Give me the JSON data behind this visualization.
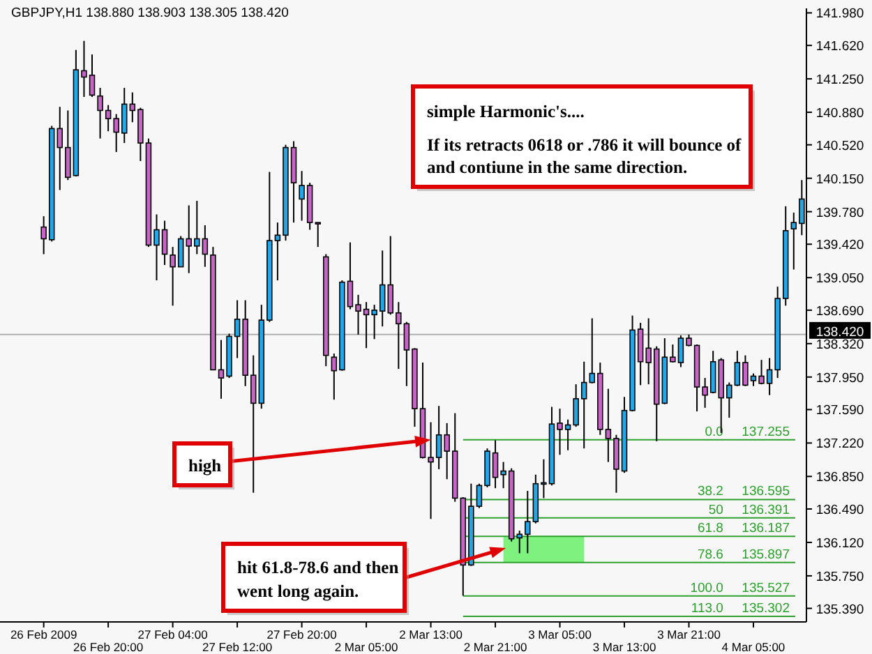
{
  "chart_data": {
    "type": "candlestick",
    "title": "GBPJPY,H1  138.880 138.903 138.305 138.420",
    "categories": [
      "26 Feb 2009",
      null,
      null,
      null,
      null,
      null,
      null,
      null,
      "26 Feb 20:00",
      null,
      null,
      null,
      null,
      null,
      null,
      null,
      "27 Feb 04:00",
      null,
      null,
      null,
      null,
      null,
      null,
      null,
      "27 Feb 12:00",
      null,
      null,
      null,
      null,
      null,
      null,
      null,
      "27 Feb 20:00",
      null,
      null,
      null,
      null,
      null,
      null,
      null,
      "2 Mar 05:00",
      null,
      null,
      null,
      null,
      null,
      null,
      null,
      "2 Mar 13:00",
      null,
      null,
      null,
      null,
      null,
      null,
      null,
      "2 Mar 21:00",
      null,
      null,
      null,
      null,
      null,
      null,
      null,
      "3 Mar 05:00",
      null,
      null,
      null,
      null,
      null,
      null,
      null,
      "3 Mar 13:00",
      null,
      null,
      null,
      null,
      null,
      null,
      null,
      "3 Mar 21:00",
      null,
      null,
      null,
      null,
      null,
      null,
      null,
      "4 Mar 05:00",
      null,
      null,
      null,
      null,
      null,
      null
    ],
    "ohlc": [
      [
        139.61,
        139.73,
        139.31,
        139.48
      ],
      [
        139.47,
        140.73,
        139.45,
        140.7
      ],
      [
        140.7,
        140.94,
        140.02,
        140.49
      ],
      [
        140.49,
        140.9,
        140.13,
        140.16
      ],
      [
        140.18,
        141.57,
        140.17,
        141.35
      ],
      [
        141.34,
        141.67,
        141.05,
        141.27
      ],
      [
        141.29,
        141.52,
        141.05,
        141.07
      ],
      [
        141.06,
        141.15,
        140.59,
        140.9
      ],
      [
        140.9,
        140.96,
        140.67,
        140.81
      ],
      [
        140.81,
        140.86,
        140.44,
        140.66
      ],
      [
        140.65,
        141.15,
        140.54,
        140.97
      ],
      [
        140.97,
        141.1,
        140.77,
        140.9
      ],
      [
        140.91,
        140.93,
        140.34,
        140.54
      ],
      [
        140.54,
        140.59,
        139.39,
        139.41
      ],
      [
        139.41,
        139.75,
        139.02,
        139.58
      ],
      [
        139.58,
        139.68,
        139.19,
        139.31
      ],
      [
        139.3,
        139.39,
        138.74,
        139.17
      ],
      [
        139.17,
        139.51,
        139.17,
        139.48
      ],
      [
        139.48,
        139.85,
        139.1,
        139.4
      ],
      [
        139.4,
        139.9,
        139.31,
        139.48
      ],
      [
        139.48,
        139.63,
        139.17,
        139.31
      ],
      [
        139.3,
        139.39,
        138.03,
        138.03
      ],
      [
        138.03,
        138.36,
        137.71,
        137.94
      ],
      [
        137.96,
        138.43,
        137.94,
        138.4
      ],
      [
        138.4,
        138.8,
        138.16,
        138.59
      ],
      [
        138.59,
        138.8,
        137.85,
        137.97
      ],
      [
        137.97,
        138.19,
        136.67,
        137.66
      ],
      [
        137.66,
        138.75,
        137.6,
        138.58
      ],
      [
        138.58,
        140.22,
        138.56,
        139.46
      ],
      [
        139.46,
        139.66,
        139.02,
        139.52
      ],
      [
        139.52,
        140.52,
        139.46,
        140.49
      ],
      [
        140.49,
        140.56,
        139.66,
        140.1
      ],
      [
        139.92,
        140.23,
        139.68,
        140.07
      ],
      [
        140.07,
        140.1,
        139.58,
        139.66
      ],
      [
        139.66,
        139.66,
        139.39,
        139.66
      ],
      [
        139.28,
        139.31,
        138.07,
        138.19
      ],
      [
        138.17,
        138.21,
        137.7,
        138.02
      ],
      [
        138.03,
        139.02,
        138.02,
        139.0
      ],
      [
        139.01,
        139.44,
        138.7,
        138.73
      ],
      [
        138.75,
        138.86,
        138.42,
        138.68
      ],
      [
        138.7,
        138.78,
        138.27,
        138.64
      ],
      [
        138.64,
        138.75,
        138.37,
        138.69
      ],
      [
        138.68,
        139.35,
        138.51,
        138.97
      ],
      [
        138.97,
        139.51,
        138.64,
        138.66
      ],
      [
        138.66,
        138.78,
        138.04,
        138.54
      ],
      [
        138.54,
        138.56,
        137.85,
        138.25
      ],
      [
        138.26,
        138.27,
        137.4,
        137.6
      ],
      [
        137.6,
        138.11,
        137.05,
        137.06
      ],
      [
        137.06,
        137.45,
        136.38,
        137.01
      ],
      [
        137.06,
        137.63,
        136.93,
        137.31
      ],
      [
        137.31,
        137.44,
        136.82,
        137.13
      ],
      [
        137.13,
        137.55,
        136.57,
        136.61
      ],
      [
        136.61,
        136.62,
        135.53,
        135.87
      ],
      [
        135.87,
        136.77,
        135.86,
        136.52
      ],
      [
        136.52,
        136.77,
        136.5,
        136.75
      ],
      [
        136.75,
        137.16,
        136.73,
        137.13
      ],
      [
        137.11,
        137.25,
        136.72,
        136.84
      ],
      [
        136.87,
        137.01,
        136.72,
        136.91
      ],
      [
        136.91,
        136.94,
        136.13,
        136.16
      ],
      [
        136.17,
        136.25,
        136.0,
        136.21
      ],
      [
        136.21,
        136.69,
        136.0,
        136.35
      ],
      [
        136.35,
        136.87,
        136.33,
        136.77
      ],
      [
        136.77,
        137.04,
        136.61,
        136.78
      ],
      [
        136.77,
        137.62,
        136.75,
        137.43
      ],
      [
        137.44,
        137.6,
        137.09,
        137.37
      ],
      [
        137.37,
        137.48,
        137.14,
        137.42
      ],
      [
        137.42,
        137.87,
        137.4,
        137.71
      ],
      [
        137.71,
        138.12,
        137.16,
        137.89
      ],
      [
        137.89,
        138.6,
        137.88,
        137.99
      ],
      [
        137.99,
        138.11,
        137.31,
        137.37
      ],
      [
        137.37,
        137.82,
        137.01,
        137.27
      ],
      [
        137.27,
        137.31,
        136.67,
        136.93
      ],
      [
        136.91,
        137.73,
        136.89,
        137.58
      ],
      [
        137.58,
        138.63,
        137.57,
        138.47
      ],
      [
        138.48,
        138.55,
        137.86,
        138.12
      ],
      [
        138.27,
        138.6,
        137.87,
        138.11
      ],
      [
        138.26,
        138.29,
        137.24,
        137.65
      ],
      [
        137.66,
        138.38,
        137.65,
        138.17
      ],
      [
        138.17,
        138.31,
        138.11,
        138.12
      ],
      [
        138.11,
        138.41,
        138.06,
        138.38
      ],
      [
        138.38,
        138.42,
        138.29,
        138.3
      ],
      [
        138.3,
        138.31,
        137.57,
        137.84
      ],
      [
        137.84,
        137.94,
        137.61,
        137.75
      ],
      [
        137.78,
        138.24,
        137.77,
        138.12
      ],
      [
        138.14,
        138.16,
        137.33,
        137.72
      ],
      [
        137.72,
        137.89,
        137.5,
        137.86
      ],
      [
        137.86,
        138.24,
        137.85,
        138.11
      ],
      [
        138.11,
        138.19,
        137.85,
        137.86
      ],
      [
        137.91,
        137.99,
        137.85,
        137.96
      ],
      [
        137.96,
        138.14,
        137.87,
        137.88
      ],
      [
        137.88,
        138.16,
        137.75,
        138.03
      ],
      [
        138.03,
        138.95,
        137.94,
        138.82
      ],
      [
        138.82,
        139.84,
        138.74,
        139.57
      ],
      [
        139.59,
        139.77,
        139.14,
        139.66
      ],
      [
        139.65,
        140.13,
        139.52,
        139.92
      ]
    ],
    "colors": [
      "#c864c8",
      "#22a8e8",
      "#c864c8",
      "#c864c8",
      "#22a8e8",
      "#c864c8",
      "#c864c8",
      "#c864c8",
      "#c864c8",
      "#c864c8",
      "#22a8e8",
      "#c864c8",
      "#c864c8",
      "#c864c8",
      "#22a8e8",
      "#c864c8",
      "#c864c8",
      "#22a8e8",
      "#c864c8",
      "#22a8e8",
      "#c864c8",
      "#c864c8",
      "#c864c8",
      "#22a8e8",
      "#22a8e8",
      "#c864c8",
      "#c864c8",
      "#22a8e8",
      "#22a8e8",
      "#22a8e8",
      "#22a8e8",
      "#c864c8",
      "#22a8e8",
      "#c864c8",
      "#c864c8",
      "#c864c8",
      "#c864c8",
      "#22a8e8",
      "#c864c8",
      "#c864c8",
      "#c864c8",
      "#22a8e8",
      "#22a8e8",
      "#c864c8",
      "#c864c8",
      "#c864c8",
      "#c864c8",
      "#c864c8",
      "#c864c8",
      "#22a8e8",
      "#c864c8",
      "#c864c8",
      "#c864c8",
      "#22a8e8",
      "#22a8e8",
      "#22a8e8",
      "#c864c8",
      "#22a8e8",
      "#c864c8",
      "#22a8e8",
      "#22a8e8",
      "#22a8e8",
      "#22a8e8",
      "#22a8e8",
      "#c864c8",
      "#22a8e8",
      "#22a8e8",
      "#22a8e8",
      "#22a8e8",
      "#c864c8",
      "#c864c8",
      "#c864c8",
      "#22a8e8",
      "#22a8e8",
      "#c864c8",
      "#c864c8",
      "#c864c8",
      "#22a8e8",
      "#c864c8",
      "#22a8e8",
      "#c864c8",
      "#c864c8",
      "#c864c8",
      "#22a8e8",
      "#c864c8",
      "#22a8e8",
      "#22a8e8",
      "#c864c8",
      "#22a8e8",
      "#c864c8",
      "#22a8e8",
      "#22a8e8",
      "#22a8e8",
      "#22a8e8",
      "#22a8e8"
    ],
    "ylim": [
      135.24,
      142.03
    ],
    "yticks": [
      {
        "value": 141.98,
        "label": "141.980"
      },
      {
        "value": 141.62,
        "label": "141.620"
      },
      {
        "value": 141.25,
        "label": "141.250"
      },
      {
        "value": 140.88,
        "label": "140.880"
      },
      {
        "value": 140.52,
        "label": "140.520"
      },
      {
        "value": 140.15,
        "label": "140.150"
      },
      {
        "value": 139.78,
        "label": "139.780"
      },
      {
        "value": 139.42,
        "label": "139.420"
      },
      {
        "value": 139.05,
        "label": "139.050"
      },
      {
        "value": 138.69,
        "label": "138.690"
      },
      {
        "value": 138.32,
        "label": "138.320"
      },
      {
        "value": 137.95,
        "label": "137.950"
      },
      {
        "value": 137.59,
        "label": "137.590"
      },
      {
        "value": 137.22,
        "label": "137.220"
      },
      {
        "value": 136.85,
        "label": "136.850"
      },
      {
        "value": 136.49,
        "label": "136.490"
      },
      {
        "value": 136.12,
        "label": "136.120"
      },
      {
        "value": 135.75,
        "label": "135.750"
      },
      {
        "value": 135.39,
        "label": "135.390"
      }
    ],
    "ref_lines": [
      {
        "axis": "y",
        "value": 138.42,
        "label": "138.420",
        "color": "#b0b0b0"
      },
      {
        "axis": "y",
        "value": 137.255,
        "label": "0.0     137.255",
        "color": "#2ca02c"
      },
      {
        "axis": "y",
        "value": 136.595,
        "label": "38.2     136.595",
        "color": "#2ca02c"
      },
      {
        "axis": "y",
        "value": 136.391,
        "label": "50     136.391",
        "color": "#2ca02c"
      },
      {
        "axis": "y",
        "value": 136.187,
        "label": "61.8     136.187",
        "color": "#2ca02c"
      },
      {
        "axis": "y",
        "value": 135.897,
        "label": "78.6     135.897",
        "color": "#2ca02c"
      },
      {
        "axis": "y",
        "value": 135.527,
        "label": "100.0     135.527",
        "color": "#2ca02c"
      },
      {
        "axis": "y",
        "value": 135.302,
        "label": "113.0     135.302",
        "color": "#2ca02c"
      }
    ],
    "bands": [
      {
        "axis": "y",
        "from": 135.897,
        "to": 136.187,
        "color": "#70f070"
      }
    ],
    "annotations": [
      "simple Harmonic's....",
      "If its retracts 0618 or .786 it will bounce of and contiune in the same direction.",
      {
        "text": "high",
        "x": "2 Mar 13:00",
        "y": 137.255
      },
      "hit 61.8-78.6 and then went long again."
    ]
  }
}
